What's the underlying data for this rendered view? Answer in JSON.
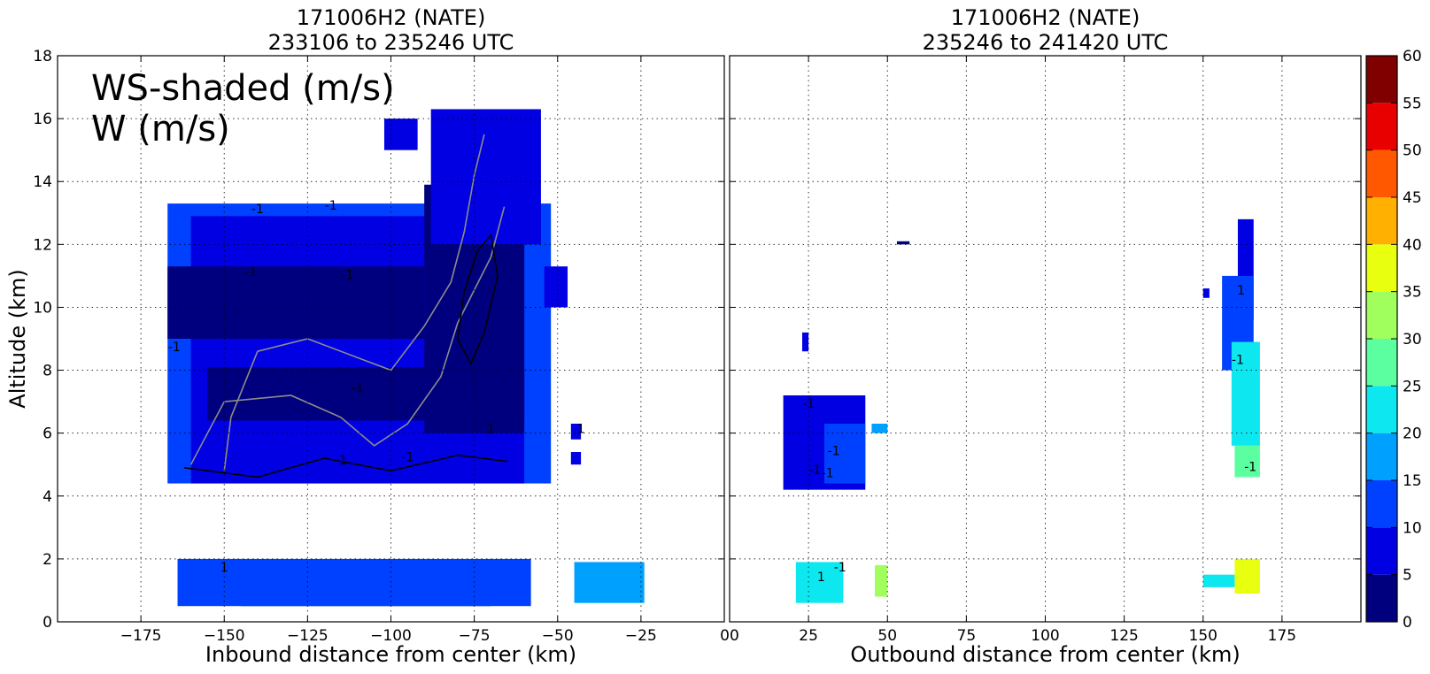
{
  "chart_data": [
    {
      "type": "heatmap",
      "title_line1": "171006H2 (NATE)",
      "title_line2": "233106 to 235246 UTC",
      "xlabel": "Inbound distance from center (km)",
      "ylabel": "Altitude (km)",
      "xlim": [
        -200,
        0
      ],
      "ylim": [
        0,
        18
      ],
      "xticks": [
        -175,
        -150,
        -125,
        -100,
        -75,
        -50,
        -25,
        0
      ],
      "yticks": [
        0,
        2,
        4,
        6,
        8,
        10,
        12,
        14,
        16,
        18
      ],
      "grid": true,
      "overlay_text": [
        "WS-shaded (m/s)",
        "W (m/s)"
      ],
      "contour_labels": [
        "-1",
        "-1",
        "-1",
        "-1",
        "-1",
        "-1",
        "-1",
        "-1",
        "1",
        "1",
        "1"
      ],
      "regions": [
        {
          "level": 10,
          "x0": -167,
          "x1": -52,
          "y0": 4.4,
          "y1": 13.3
        },
        {
          "level": 5,
          "x0": -160,
          "x1": -60,
          "y0": 4.4,
          "y1": 12.9
        },
        {
          "level": 0,
          "x0": -167,
          "x1": -90,
          "y0": 9.0,
          "y1": 11.3
        },
        {
          "level": 0,
          "x0": -155,
          "x1": -60,
          "y0": 6.4,
          "y1": 8.1
        },
        {
          "level": 0,
          "x0": -90,
          "x1": -60,
          "y0": 6.0,
          "y1": 13.9
        },
        {
          "level": 5,
          "x0": -88,
          "x1": -55,
          "y0": 12.0,
          "y1": 16.3
        },
        {
          "level": 5,
          "x0": -102,
          "x1": -92,
          "y0": 15.0,
          "y1": 16.0
        },
        {
          "level": 5,
          "x0": -54,
          "x1": -47,
          "y0": 10.0,
          "y1": 11.3
        },
        {
          "level": 10,
          "x0": -164,
          "x1": -58,
          "y0": 0.5,
          "y1": 2.0
        },
        {
          "level": 10,
          "x0": -145,
          "x1": -70,
          "y0": 0.5,
          "y1": 1.9
        },
        {
          "level": 15,
          "x0": -45,
          "x1": -24,
          "y0": 0.6,
          "y1": 1.9
        },
        {
          "level": 5,
          "x0": -46,
          "x1": -43,
          "y0": 5.8,
          "y1": 6.3
        },
        {
          "level": 5,
          "x0": -46,
          "x1": -43,
          "y0": 5.0,
          "y1": 5.4
        }
      ]
    },
    {
      "type": "heatmap",
      "title_line1": "171006H2 (NATE)",
      "title_line2": "235246 to 241420 UTC",
      "xlabel": "Outbound distance from center (km)",
      "ylabel": "",
      "xlim": [
        0,
        200
      ],
      "ylim": [
        0,
        18
      ],
      "xticks": [
        0,
        25,
        50,
        75,
        100,
        125,
        150,
        175
      ],
      "yticks": [
        0,
        2,
        4,
        6,
        8,
        10,
        12,
        14,
        16,
        18
      ],
      "grid": true,
      "contour_labels": [
        "-1",
        "-1",
        "-1",
        "-1",
        "1",
        "-1",
        "-1",
        "1",
        "-1"
      ],
      "regions": [
        {
          "level": 5,
          "x0": 17,
          "x1": 43,
          "y0": 4.2,
          "y1": 7.2
        },
        {
          "level": 10,
          "x0": 30,
          "x1": 43,
          "y0": 4.4,
          "y1": 6.3
        },
        {
          "level": 5,
          "x0": 23,
          "x1": 25,
          "y0": 8.6,
          "y1": 9.2
        },
        {
          "level": 15,
          "x0": 45,
          "x1": 50,
          "y0": 6.0,
          "y1": 6.3
        },
        {
          "level": 0,
          "x0": 53,
          "x1": 57,
          "y0": 12.0,
          "y1": 12.1
        },
        {
          "level": 20,
          "x0": 21,
          "x1": 36,
          "y0": 0.6,
          "y1": 1.9
        },
        {
          "level": 30,
          "x0": 46,
          "x1": 50,
          "y0": 0.8,
          "y1": 1.8
        },
        {
          "level": 5,
          "x0": 161,
          "x1": 166,
          "y0": 9.6,
          "y1": 12.8
        },
        {
          "level": 10,
          "x0": 156,
          "x1": 166,
          "y0": 8.0,
          "y1": 11.0
        },
        {
          "level": 5,
          "x0": 150,
          "x1": 152,
          "y0": 10.3,
          "y1": 10.6
        },
        {
          "level": 20,
          "x0": 159,
          "x1": 168,
          "y0": 5.6,
          "y1": 8.9
        },
        {
          "level": 25,
          "x0": 160,
          "x1": 168,
          "y0": 4.6,
          "y1": 5.6
        },
        {
          "level": 35,
          "x0": 160,
          "x1": 168,
          "y0": 0.9,
          "y1": 2.0
        },
        {
          "level": 20,
          "x0": 150,
          "x1": 160,
          "y0": 1.1,
          "y1": 1.5
        }
      ]
    }
  ],
  "colorbar": {
    "min": 0,
    "max": 60,
    "ticks": [
      0,
      5,
      10,
      15,
      20,
      25,
      30,
      35,
      40,
      45,
      50,
      55,
      60
    ],
    "colors": [
      "#00007f",
      "#0000e3",
      "#0040ff",
      "#00a0ff",
      "#0de8f0",
      "#5cffa0",
      "#a0ff5c",
      "#e8ff10",
      "#ffb000",
      "#ff5800",
      "#e80000",
      "#800000"
    ]
  },
  "colors": {
    "contour_gray": "#8c8c8c",
    "contour_black": "#000000",
    "grid": "#000000"
  }
}
